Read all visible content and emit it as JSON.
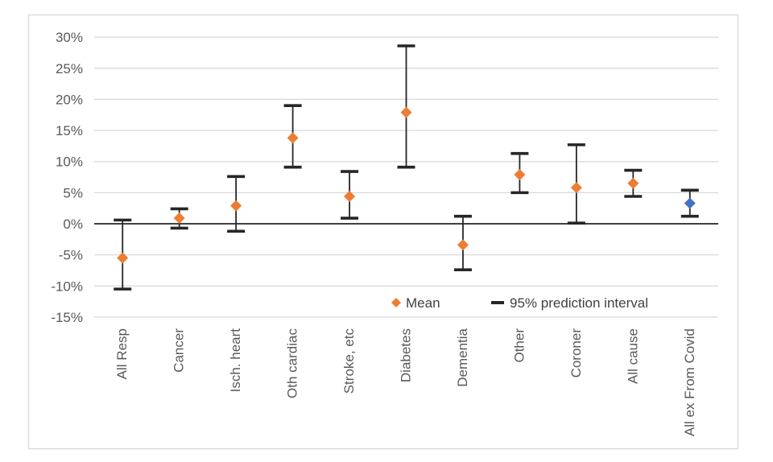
{
  "chart_data": {
    "type": "scatter",
    "subtype": "mean-with-95pct-prediction-interval-error-bars",
    "title": "",
    "xlabel": "",
    "ylabel": "",
    "categories": [
      "All Resp",
      "Cancer",
      "Isch. heart",
      "Oth cardiac",
      "Stroke, etc",
      "Diabetes",
      "Dementia",
      "Other",
      "Coroner",
      "All cause",
      "All ex From Covid"
    ],
    "series": [
      {
        "name": "Mean",
        "marker": "diamond",
        "values": [
          -5.5,
          0.9,
          2.9,
          13.8,
          4.4,
          17.9,
          -3.4,
          7.9,
          5.8,
          6.5,
          3.3
        ],
        "ci_low": [
          -10.5,
          -0.7,
          -1.2,
          9.1,
          0.9,
          9.1,
          -7.4,
          5.0,
          0.1,
          4.4,
          1.2
        ],
        "ci_high": [
          0.6,
          2.4,
          7.6,
          19.0,
          8.4,
          28.6,
          1.2,
          11.3,
          12.7,
          8.6,
          5.4
        ],
        "point_colors": [
          "#ED7D31",
          "#ED7D31",
          "#ED7D31",
          "#ED7D31",
          "#ED7D31",
          "#ED7D31",
          "#ED7D31",
          "#ED7D31",
          "#ED7D31",
          "#ED7D31",
          "#4472C4"
        ]
      }
    ],
    "ylim": [
      -15,
      30
    ],
    "yticks": [
      30,
      25,
      20,
      15,
      10,
      5,
      0,
      -5,
      -10,
      -15
    ],
    "ytick_labels": [
      "30%",
      "25%",
      "20%",
      "15%",
      "10%",
      "5%",
      "0%",
      "-5%",
      "-10%",
      "-15%"
    ],
    "grid": true,
    "legend": {
      "position": "inside-bottom",
      "items": [
        {
          "label": "Mean",
          "marker": "diamond",
          "color": "#ED7D31"
        },
        {
          "label": "95% prediction interval",
          "marker": "dash",
          "color": "#262626"
        }
      ]
    },
    "colors": {
      "gridline": "#D9D9D9",
      "axis": "#404040",
      "error_bar": "#262626",
      "tick_label": "#595959",
      "legend_text": "#404040",
      "frame_border": "#D9D9D9",
      "background": "#FFFFFF"
    }
  }
}
